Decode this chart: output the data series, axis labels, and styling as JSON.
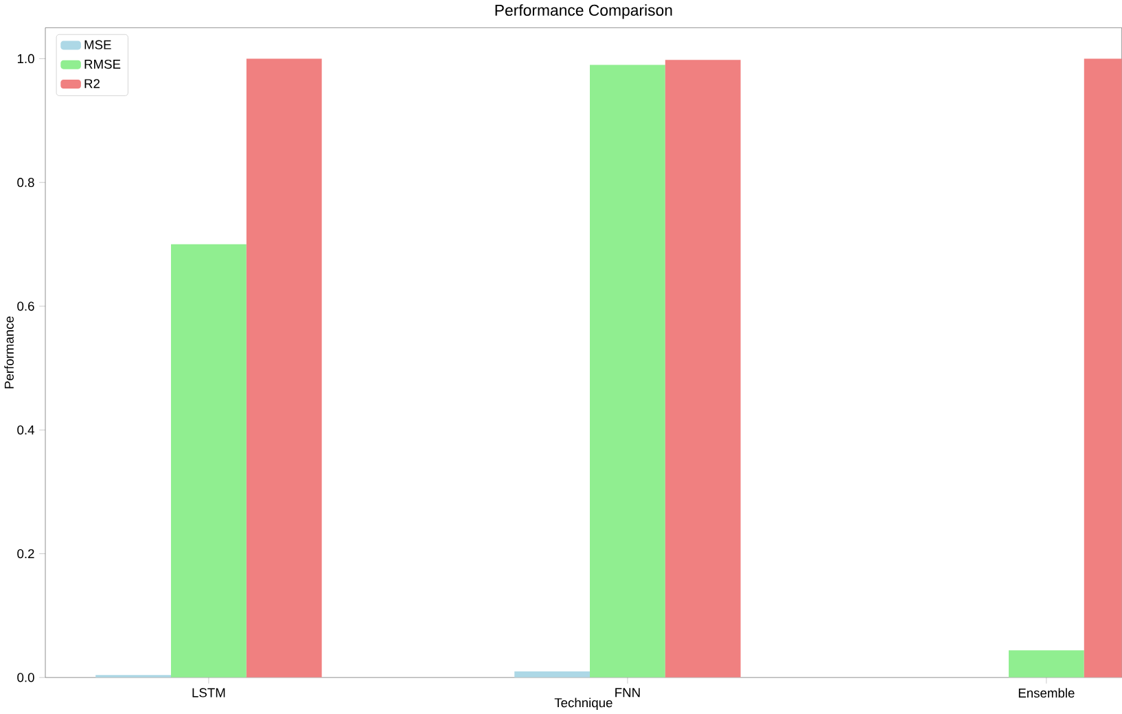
{
  "chart_data": {
    "type": "bar",
    "title": "Performance Comparison",
    "xlabel": "Technique",
    "ylabel": "Performance",
    "categories": [
      "LSTM",
      "FNN",
      "Ensemble"
    ],
    "series": [
      {
        "name": "MSE",
        "color": "#add8e6",
        "values": [
          0.004,
          0.01,
          null
        ]
      },
      {
        "name": "RMSE",
        "color": "#90ee90",
        "values": [
          0.7,
          0.99,
          0.044
        ]
      },
      {
        "name": "R2",
        "color": "#f08080",
        "values": [
          1.0,
          0.998,
          1.0
        ]
      }
    ],
    "ylim": [
      0,
      1.05
    ],
    "yticks": [
      {
        "value": 0,
        "label": "0.0"
      },
      {
        "value": 0.2,
        "label": "0.2"
      },
      {
        "value": 0.4,
        "label": "0.4"
      },
      {
        "value": 0.6,
        "label": "0.6"
      },
      {
        "value": 0.8,
        "label": "0.8"
      },
      {
        "value": 1.0,
        "label": "1.0"
      }
    ],
    "legend": "top left",
    "grid": false
  }
}
